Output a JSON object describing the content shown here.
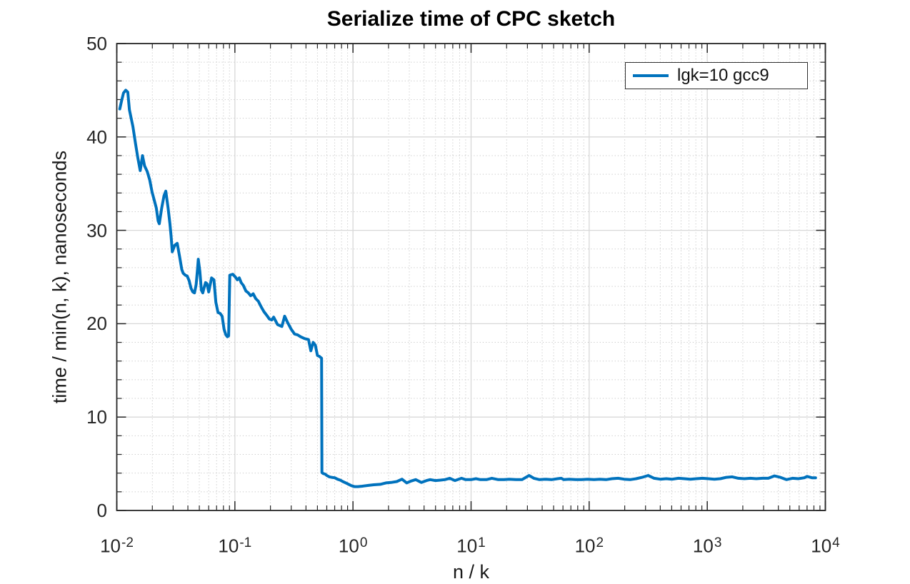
{
  "title": "Serialize time of CPC sketch",
  "axes": {
    "xlabel": "n / k",
    "ylabel": "time / min(n, k), nanoseconds",
    "x_scale": "log",
    "x_tick_exponents": [
      -2,
      -1,
      0,
      1,
      2,
      3,
      4
    ],
    "y_ticks": [
      0,
      10,
      20,
      30,
      40,
      50
    ],
    "y_minor_step": 2
  },
  "legend": {
    "label": "lgk=10 gcc9",
    "position": "top-right"
  },
  "colors": {
    "line": "#0072bd",
    "major_grid": "#d8d8d8",
    "minor_grid": "#c6c6c6",
    "axis": "#262626",
    "background": "#ffffff"
  },
  "chart_data": {
    "type": "line",
    "title": "Serialize time of CPC sketch",
    "xlabel": "n / k",
    "ylabel": "time / min(n, k), nanoseconds",
    "x_scale": "log",
    "xlim": [
      0.01,
      10000
    ],
    "ylim": [
      0,
      50
    ],
    "grid": "major and minor, minor dotted",
    "legend_position": "top-right",
    "series": [
      {
        "name": "lgk=10 gcc9",
        "color": "#0072bd",
        "points": [
          [
            0.0106,
            43.0
          ],
          [
            0.011,
            43.9
          ],
          [
            0.0114,
            44.7
          ],
          [
            0.0119,
            45.0
          ],
          [
            0.0124,
            44.8
          ],
          [
            0.0128,
            42.9
          ],
          [
            0.0137,
            41.1
          ],
          [
            0.0144,
            39.3
          ],
          [
            0.0151,
            37.7
          ],
          [
            0.0158,
            36.4
          ],
          [
            0.0165,
            38.0
          ],
          [
            0.0172,
            36.9
          ],
          [
            0.0181,
            36.3
          ],
          [
            0.019,
            35.4
          ],
          [
            0.0199,
            34.1
          ],
          [
            0.0209,
            33.1
          ],
          [
            0.0216,
            32.4
          ],
          [
            0.0224,
            31.0
          ],
          [
            0.0229,
            30.7
          ],
          [
            0.024,
            32.4
          ],
          [
            0.0251,
            33.7
          ],
          [
            0.026,
            34.2
          ],
          [
            0.0272,
            32.4
          ],
          [
            0.0282,
            30.7
          ],
          [
            0.0288,
            29.4
          ],
          [
            0.0295,
            27.7
          ],
          [
            0.031,
            28.4
          ],
          [
            0.0325,
            28.6
          ],
          [
            0.034,
            27.2
          ],
          [
            0.0355,
            25.8
          ],
          [
            0.0365,
            25.4
          ],
          [
            0.038,
            25.2
          ],
          [
            0.0395,
            25.1
          ],
          [
            0.041,
            24.6
          ],
          [
            0.0425,
            23.8
          ],
          [
            0.044,
            23.4
          ],
          [
            0.0455,
            23.3
          ],
          [
            0.047,
            24.2
          ],
          [
            0.0483,
            25.9
          ],
          [
            0.049,
            26.9
          ],
          [
            0.0505,
            25.6
          ],
          [
            0.052,
            23.6
          ],
          [
            0.0535,
            23.3
          ],
          [
            0.055,
            23.9
          ],
          [
            0.0565,
            24.4
          ],
          [
            0.058,
            24.3
          ],
          [
            0.06,
            23.4
          ],
          [
            0.0635,
            24.9
          ],
          [
            0.0665,
            24.7
          ],
          [
            0.069,
            22.3
          ],
          [
            0.072,
            21.2
          ],
          [
            0.075,
            21.1
          ],
          [
            0.078,
            20.8
          ],
          [
            0.081,
            19.4
          ],
          [
            0.084,
            18.8
          ],
          [
            0.0865,
            18.6
          ],
          [
            0.0885,
            18.7
          ],
          [
            0.0905,
            25.2
          ],
          [
            0.096,
            25.3
          ],
          [
            0.101,
            25.0
          ],
          [
            0.105,
            24.7
          ],
          [
            0.109,
            24.9
          ],
          [
            0.113,
            24.4
          ],
          [
            0.118,
            24.1
          ],
          [
            0.124,
            23.5
          ],
          [
            0.13,
            23.3
          ],
          [
            0.136,
            23.0
          ],
          [
            0.143,
            23.2
          ],
          [
            0.15,
            22.7
          ],
          [
            0.158,
            22.4
          ],
          [
            0.167,
            21.8
          ],
          [
            0.176,
            21.3
          ],
          [
            0.186,
            20.9
          ],
          [
            0.196,
            20.5
          ],
          [
            0.205,
            20.4
          ],
          [
            0.213,
            20.7
          ],
          [
            0.23,
            19.9
          ],
          [
            0.25,
            19.7
          ],
          [
            0.264,
            20.8
          ],
          [
            0.28,
            20.1
          ],
          [
            0.3,
            19.4
          ],
          [
            0.32,
            18.9
          ],
          [
            0.34,
            18.8
          ],
          [
            0.36,
            18.6
          ],
          [
            0.39,
            18.4
          ],
          [
            0.42,
            18.3
          ],
          [
            0.44,
            17.1
          ],
          [
            0.46,
            18.0
          ],
          [
            0.48,
            17.7
          ],
          [
            0.5,
            16.6
          ],
          [
            0.52,
            16.5
          ],
          [
            0.542,
            16.3
          ],
          [
            0.546,
            4.05
          ],
          [
            0.56,
            3.95
          ],
          [
            0.58,
            3.9
          ],
          [
            0.6,
            3.75
          ],
          [
            0.63,
            3.6
          ],
          [
            0.66,
            3.55
          ],
          [
            0.7,
            3.5
          ],
          [
            0.74,
            3.35
          ],
          [
            0.78,
            3.25
          ],
          [
            0.82,
            3.1
          ],
          [
            0.87,
            2.95
          ],
          [
            0.92,
            2.8
          ],
          [
            0.97,
            2.65
          ],
          [
            1.03,
            2.55
          ],
          [
            1.1,
            2.55
          ],
          [
            1.2,
            2.6
          ],
          [
            1.35,
            2.68
          ],
          [
            1.5,
            2.75
          ],
          [
            1.7,
            2.8
          ],
          [
            1.9,
            2.95
          ],
          [
            2.1,
            3.0
          ],
          [
            2.35,
            3.1
          ],
          [
            2.6,
            3.35
          ],
          [
            2.85,
            2.95
          ],
          [
            3.1,
            3.15
          ],
          [
            3.4,
            3.3
          ],
          [
            3.8,
            3.0
          ],
          [
            4.2,
            3.2
          ],
          [
            4.5,
            3.3
          ],
          [
            5.0,
            3.2
          ],
          [
            5.5,
            3.25
          ],
          [
            6.0,
            3.3
          ],
          [
            6.6,
            3.45
          ],
          [
            7.3,
            3.2
          ],
          [
            8.3,
            3.45
          ],
          [
            9.0,
            3.3
          ],
          [
            10,
            3.3
          ],
          [
            11,
            3.4
          ],
          [
            12,
            3.3
          ],
          [
            13.5,
            3.3
          ],
          [
            15,
            3.45
          ],
          [
            17,
            3.3
          ],
          [
            19,
            3.3
          ],
          [
            21,
            3.35
          ],
          [
            24,
            3.3
          ],
          [
            27,
            3.3
          ],
          [
            31,
            3.75
          ],
          [
            34,
            3.45
          ],
          [
            38,
            3.3
          ],
          [
            43,
            3.35
          ],
          [
            48,
            3.3
          ],
          [
            54,
            3.4
          ],
          [
            58,
            3.45
          ],
          [
            61,
            3.3
          ],
          [
            68,
            3.35
          ],
          [
            77,
            3.3
          ],
          [
            86,
            3.3
          ],
          [
            97,
            3.35
          ],
          [
            110,
            3.3
          ],
          [
            123,
            3.35
          ],
          [
            139,
            3.3
          ],
          [
            156,
            3.4
          ],
          [
            176,
            3.45
          ],
          [
            198,
            3.35
          ],
          [
            222,
            3.3
          ],
          [
            250,
            3.4
          ],
          [
            281,
            3.55
          ],
          [
            316,
            3.75
          ],
          [
            355,
            3.45
          ],
          [
            400,
            3.35
          ],
          [
            450,
            3.4
          ],
          [
            505,
            3.35
          ],
          [
            570,
            3.45
          ],
          [
            640,
            3.4
          ],
          [
            720,
            3.35
          ],
          [
            810,
            3.4
          ],
          [
            910,
            3.45
          ],
          [
            1020,
            3.4
          ],
          [
            1150,
            3.35
          ],
          [
            1290,
            3.4
          ],
          [
            1450,
            3.55
          ],
          [
            1630,
            3.6
          ],
          [
            1830,
            3.45
          ],
          [
            2060,
            3.4
          ],
          [
            2320,
            3.45
          ],
          [
            2600,
            3.4
          ],
          [
            2930,
            3.45
          ],
          [
            3290,
            3.45
          ],
          [
            3700,
            3.7
          ],
          [
            4160,
            3.55
          ],
          [
            4680,
            3.3
          ],
          [
            5260,
            3.45
          ],
          [
            5910,
            3.4
          ],
          [
            6640,
            3.5
          ],
          [
            7000,
            3.65
          ],
          [
            7700,
            3.5
          ],
          [
            8260,
            3.5
          ]
        ]
      }
    ]
  }
}
